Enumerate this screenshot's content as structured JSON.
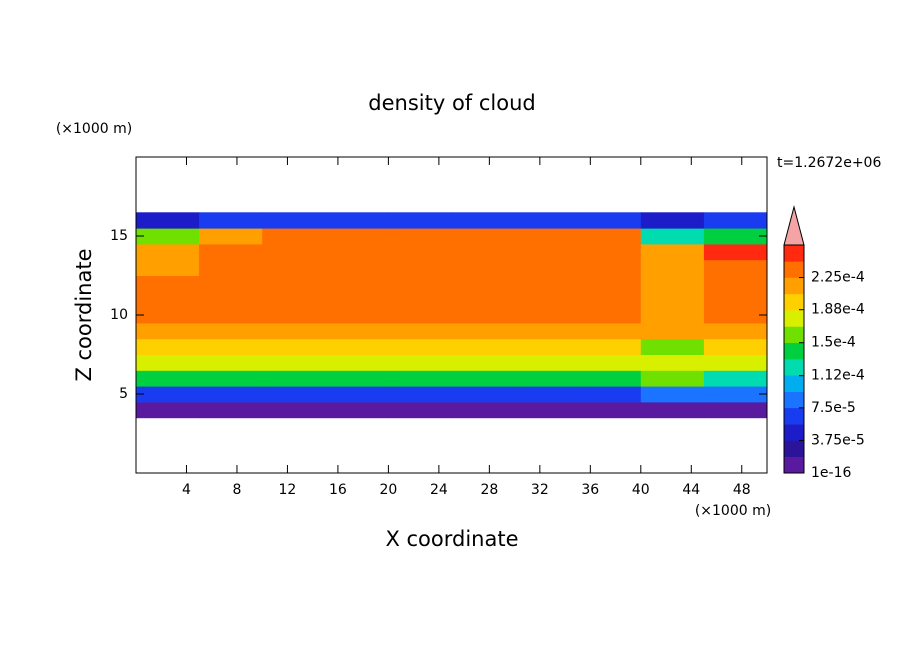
{
  "chart_data": {
    "type": "contour",
    "title": "density of cloud",
    "xlabel": "X coordinate",
    "ylabel": "Z coordinate",
    "x_unit": "(×1000 m)",
    "y_unit": "(×1000 m)",
    "time_label": "t=1.2672e+06",
    "xlim": [
      0,
      50
    ],
    "ylim": [
      0,
      20
    ],
    "xticks": [
      4,
      8,
      12,
      16,
      20,
      24,
      28,
      32,
      36,
      40,
      44,
      48
    ],
    "yticks": [
      5,
      10,
      15
    ],
    "x_edges": [
      0,
      5,
      10,
      15,
      20,
      25,
      30,
      35,
      40,
      45,
      50
    ],
    "y_edges": [
      3.5,
      4.5,
      5.5,
      6.5,
      7.5,
      8.5,
      9.5,
      10.5,
      11.5,
      12.5,
      13.5,
      14.5,
      15.5,
      16.5
    ],
    "z": [
      [
        1.5e-05,
        1.5e-05,
        1.5e-05,
        1.5e-05,
        1.5e-05,
        1.5e-05,
        1.5e-05,
        1.5e-05,
        1.5e-05,
        1e-05
      ],
      [
        7e-05,
        7e-05,
        7e-05,
        7e-05,
        7e-05,
        7e-05,
        7e-05,
        7e-05,
        9e-05,
        8e-05
      ],
      [
        0.00014,
        0.00014,
        0.00014,
        0.00014,
        0.00014,
        0.00014,
        0.00014,
        0.00014,
        0.00016,
        0.00013
      ],
      [
        0.000175,
        0.000175,
        0.000175,
        0.000175,
        0.000175,
        0.000175,
        0.000175,
        0.000175,
        0.00018,
        0.00017
      ],
      [
        0.0002,
        0.0002,
        0.0002,
        0.0002,
        0.0002,
        0.0002,
        0.0002,
        0.0002,
        0.00015,
        0.00019
      ],
      [
        0.00022,
        0.00022,
        0.00022,
        0.00022,
        0.00022,
        0.00022,
        0.00022,
        0.00022,
        0.00021,
        0.00021
      ],
      [
        0.000235,
        0.000235,
        0.000235,
        0.000235,
        0.000235,
        0.000235,
        0.000235,
        0.000235,
        0.00022,
        0.00023
      ],
      [
        0.000235,
        0.000235,
        0.000235,
        0.000235,
        0.000235,
        0.000235,
        0.000235,
        0.000235,
        0.00022,
        0.00023
      ],
      [
        0.000235,
        0.000235,
        0.000235,
        0.000235,
        0.000235,
        0.000235,
        0.000235,
        0.000235,
        0.00022,
        0.00023
      ],
      [
        0.00022,
        0.000235,
        0.000235,
        0.000235,
        0.000235,
        0.000235,
        0.000235,
        0.000235,
        0.00022,
        0.00023
      ],
      [
        0.000215,
        0.000235,
        0.000235,
        0.000235,
        0.000235,
        0.000235,
        0.000235,
        0.000235,
        0.00022,
        0.000245
      ],
      [
        0.00016,
        0.00022,
        0.000225,
        0.000225,
        0.000225,
        0.000225,
        0.000225,
        0.000225,
        0.00012,
        0.00014
      ],
      [
        4e-05,
        7e-05,
        7e-05,
        7e-05,
        7e-05,
        7e-05,
        7e-05,
        7e-05,
        5e-05,
        6e-05
      ]
    ],
    "levels": [
      1e-16,
      1.875e-05,
      3.75e-05,
      5.625e-05,
      7.5e-05,
      9.375e-05,
      0.0001125,
      0.00013125,
      0.00015,
      0.00016875,
      0.0001875,
      0.00020625,
      0.000225,
      0.00024375
    ],
    "colors": [
      "#5a1aa0",
      "#2c149a",
      "#1c1cc8",
      "#1a3cf0",
      "#1a74ff",
      "#00aef0",
      "#00dcb0",
      "#00d040",
      "#70e000",
      "#d8f000",
      "#ffd000",
      "#ffa000",
      "#ff7000",
      "#ff2a10"
    ],
    "extend_color": "#f4a4a4",
    "colorbar_ticks": [
      1e-16,
      {
        "value": 3.75e-05,
        "label": "3.75e-5"
      },
      {
        "value": 7.5e-05,
        "label": "7.5e-5"
      },
      {
        "value": 0.000112,
        "label": "1.12e-4"
      },
      {
        "value": 0.00015,
        "label": "1.5e-4"
      },
      {
        "value": 0.000188,
        "label": "1.88e-4"
      },
      {
        "value": 0.000225,
        "label": "2.25e-4"
      }
    ]
  }
}
